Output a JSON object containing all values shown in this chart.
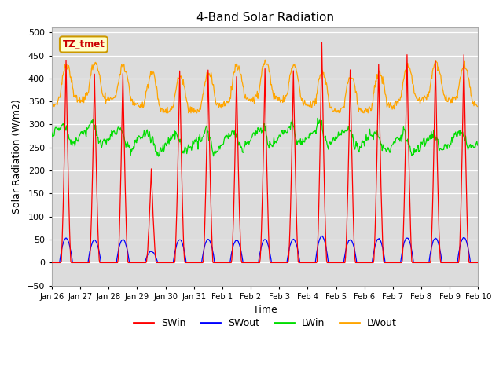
{
  "title": "4-Band Solar Radiation",
  "xlabel": "Time",
  "ylabel": "Solar Radiation (W/m2)",
  "ylim": [
    -50,
    510
  ],
  "yticks": [
    -50,
    0,
    50,
    100,
    150,
    200,
    250,
    300,
    350,
    400,
    450,
    500
  ],
  "series": [
    "SWin",
    "SWout",
    "LWin",
    "LWout"
  ],
  "colors": {
    "SWin": "#FF0000",
    "SWout": "#0000FF",
    "LWin": "#00DD00",
    "LWout": "#FFA500"
  },
  "annotation_text": "TZ_tmet",
  "annotation_bg": "#FFFFCC",
  "annotation_border": "#CC9900",
  "day_labels": [
    "Jan 26",
    "Jan 27",
    "Jan 28",
    "Jan 29",
    "Jan 30",
    "Jan 31",
    "Feb 1",
    "Feb 2",
    "Feb 3",
    "Feb 4",
    "Feb 5",
    "Feb 6",
    "Feb 7",
    "Feb 8",
    "Feb 9",
    "Feb 10"
  ],
  "SWin_peaks": [
    440,
    408,
    415,
    200,
    418,
    420,
    404,
    420,
    418,
    480,
    418,
    432,
    450,
    440,
    454
  ],
  "LWout_base": 350,
  "LWout_range": [
    330,
    435
  ],
  "LWin_range": [
    235,
    315
  ]
}
